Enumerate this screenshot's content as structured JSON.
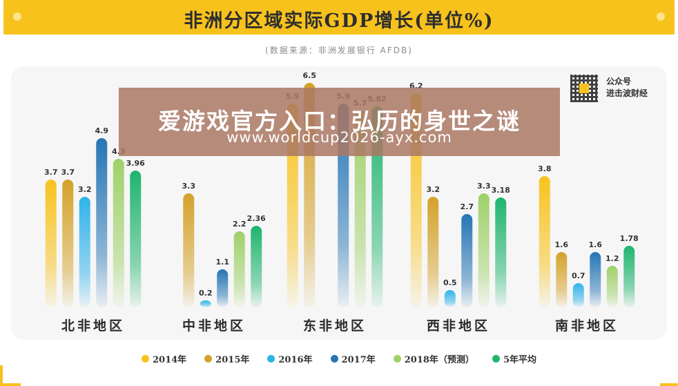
{
  "header": {
    "title": "非洲分区域实际GDP增长(单位%)",
    "source": "(数据来源：非洲发展银行 AFDB)"
  },
  "qr": {
    "line1": "公众号",
    "line2": "进击波财经"
  },
  "banner": {
    "title": "爱游戏官方入口：弘历的身世之谜",
    "url": "www.worldcup2026-ayx.com"
  },
  "colors": {
    "accent": "#f7c21c",
    "series": [
      "#f8c31e",
      "#d4a22a",
      "#2fb3ea",
      "#2575b5",
      "#9fd16a",
      "#1fb46e"
    ]
  },
  "chart_data": {
    "type": "bar",
    "categories": [
      "北非地区",
      "中非地区",
      "东非地区",
      "西非地区",
      "南非地区"
    ],
    "series": [
      {
        "name": "2014年",
        "values": [
          3.7,
          null,
          5.9,
          6.2,
          3.8
        ],
        "labels": [
          "3.7",
          "",
          "5.9",
          "6.2",
          "3.8"
        ]
      },
      {
        "name": "2015年",
        "values": [
          3.7,
          3.3,
          6.5,
          3.2,
          1.6
        ],
        "labels": [
          "3.7",
          "3.3",
          "6.5",
          "3.2",
          "1.6"
        ]
      },
      {
        "name": "2016年",
        "values": [
          3.2,
          0.2,
          null,
          0.5,
          0.7
        ],
        "labels": [
          "3.2",
          "0.2",
          "",
          "0.5",
          "0.7"
        ]
      },
      {
        "name": "2017年",
        "values": [
          4.9,
          1.1,
          5.9,
          2.7,
          1.6
        ],
        "labels": [
          "4.9",
          "1.1",
          "5.9",
          "2.7",
          "1.6"
        ]
      },
      {
        "name": "2018年（预测）",
        "values": [
          4.3,
          2.2,
          5.7,
          3.3,
          1.2
        ],
        "labels": [
          "4.3",
          "2.2",
          "5.7",
          "3.3",
          "1.2"
        ]
      },
      {
        "name": "5年平均",
        "values": [
          3.96,
          2.36,
          5.82,
          3.18,
          1.78
        ],
        "labels": [
          "3.96",
          "2.36",
          "5.82",
          "3.18",
          "1.78"
        ]
      }
    ],
    "legend": "bottom"
  }
}
